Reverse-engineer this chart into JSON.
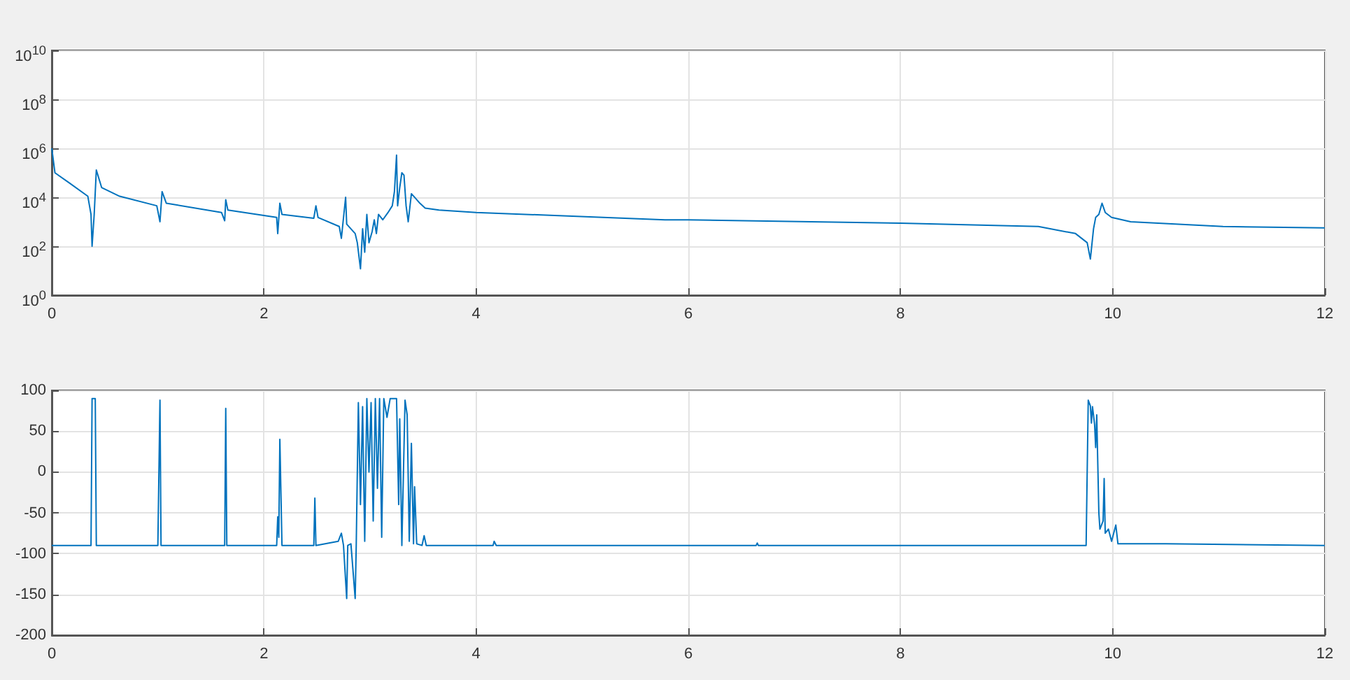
{
  "chart_data": [
    {
      "type": "line",
      "log": "y",
      "grid": true,
      "marker": "none",
      "xlim": [
        0,
        12
      ],
      "xticks": [
        0,
        2,
        4,
        6,
        8,
        10,
        12
      ],
      "ylim": [
        1,
        10000000000
      ],
      "yticks": [
        {
          "value": 1,
          "label": "10$^{0}$"
        },
        {
          "value": 100,
          "label": "10$^{2}$"
        },
        {
          "value": 10000,
          "label": "10$^{4}$"
        },
        {
          "value": 1000000,
          "label": "10$^{6}$"
        },
        {
          "value": 100000000,
          "label": "10$^{8}$"
        },
        {
          "value": 10000000000,
          "label": "10$^{10}$"
        }
      ],
      "series": [
        {
          "color": "#0072bd",
          "x": [
            0,
            0.03,
            0.16,
            0.34,
            0.37,
            0.38,
            0.4,
            0.42,
            0.47,
            0.64,
            0.99,
            1.02,
            1.04,
            1.08,
            1.6,
            1.63,
            1.64,
            1.66,
            2.12,
            2.13,
            2.15,
            2.17,
            2.47,
            2.49,
            2.51,
            2.71,
            2.73,
            2.77,
            2.78,
            2.86,
            2.88,
            2.91,
            2.93,
            2.95,
            2.97,
            2.99,
            3.02,
            3.04,
            3.06,
            3.08,
            3.12,
            3.17,
            3.21,
            3.23,
            3.25,
            3.26,
            3.28,
            3.3,
            3.32,
            3.34,
            3.36,
            3.39,
            3.43,
            3.47,
            3.52,
            3.65,
            4.0,
            4.74,
            5.78,
            6.0,
            8.0,
            9.3,
            9.65,
            9.76,
            9.79,
            9.82,
            9.84,
            9.87,
            9.9,
            9.93,
            9.99,
            10.17,
            11.04,
            12
          ],
          "values": [
            1000000,
            100000,
            40000,
            11000,
            2000,
            100,
            2000,
            130000,
            25000,
            11000,
            4500,
            1000,
            17000,
            5700,
            2400,
            1100,
            8000,
            3000,
            1500,
            330,
            5700,
            2000,
            1400,
            4500,
            1500,
            640,
            210,
            10000,
            800,
            330,
            140,
            12,
            520,
            57,
            2000,
            140,
            400,
            1200,
            330,
            2000,
            1200,
            2400,
            4500,
            17000,
            530000,
            4500,
            25000,
            100000,
            80000,
            4500,
            1000,
            14000,
            9000,
            5700,
            3600,
            3000,
            2400,
            1800,
            1200,
            1200,
            870,
            640,
            330,
            140,
            30,
            520,
            1500,
            2000,
            5700,
            2400,
            1500,
            1000,
            640,
            560
          ]
        }
      ]
    },
    {
      "type": "line",
      "grid": true,
      "marker": "none",
      "xlim": [
        0,
        12
      ],
      "xticks": [
        0,
        2,
        4,
        6,
        8,
        10,
        12
      ],
      "ylim": [
        -200,
        100
      ],
      "yticks": [
        -200,
        -150,
        -100,
        -50,
        0,
        50,
        100
      ],
      "series": [
        {
          "color": "#0072bd",
          "x": [
            0,
            0.37,
            0.38,
            0.41,
            0.42,
            1.0,
            1.02,
            1.03,
            1.63,
            1.64,
            1.65,
            2.12,
            2.13,
            2.14,
            2.15,
            2.17,
            2.47,
            2.48,
            2.49,
            2.7,
            2.73,
            2.75,
            2.78,
            2.79,
            2.82,
            2.86,
            2.87,
            2.89,
            2.91,
            2.93,
            2.95,
            2.97,
            2.99,
            3.01,
            3.03,
            3.05,
            3.07,
            3.09,
            3.11,
            3.13,
            3.16,
            3.19,
            3.25,
            3.27,
            3.28,
            3.3,
            3.33,
            3.35,
            3.37,
            3.39,
            3.41,
            3.42,
            3.44,
            3.49,
            3.51,
            3.53,
            4.16,
            4.17,
            4.19,
            6.64,
            6.65,
            6.66,
            9.75,
            9.77,
            9.79,
            9.8,
            9.81,
            9.83,
            9.84,
            9.85,
            9.87,
            9.88,
            9.91,
            9.92,
            9.93,
            9.96,
            9.99,
            10.03,
            10.05,
            10.5,
            12
          ],
          "values": [
            -90,
            -90,
            90,
            90,
            -90,
            -90,
            88,
            -90,
            -90,
            78,
            -90,
            -90,
            -55,
            -80,
            40,
            -90,
            -90,
            -32,
            -90,
            -85,
            -75,
            -90,
            -155,
            -90,
            -88,
            -155,
            -90,
            85,
            -40,
            80,
            -85,
            90,
            0,
            85,
            -60,
            90,
            -20,
            90,
            -80,
            90,
            67,
            90,
            90,
            -40,
            65,
            -90,
            88,
            70,
            -85,
            35,
            -88,
            -18,
            -88,
            -90,
            -78,
            -90,
            -90,
            -85,
            -90,
            -90,
            -87,
            -90,
            -90,
            88,
            81,
            60,
            80,
            58,
            30,
            70,
            -50,
            -70,
            -60,
            -8,
            -75,
            -70,
            -85,
            -65,
            -88,
            -88,
            -90
          ]
        }
      ]
    }
  ]
}
